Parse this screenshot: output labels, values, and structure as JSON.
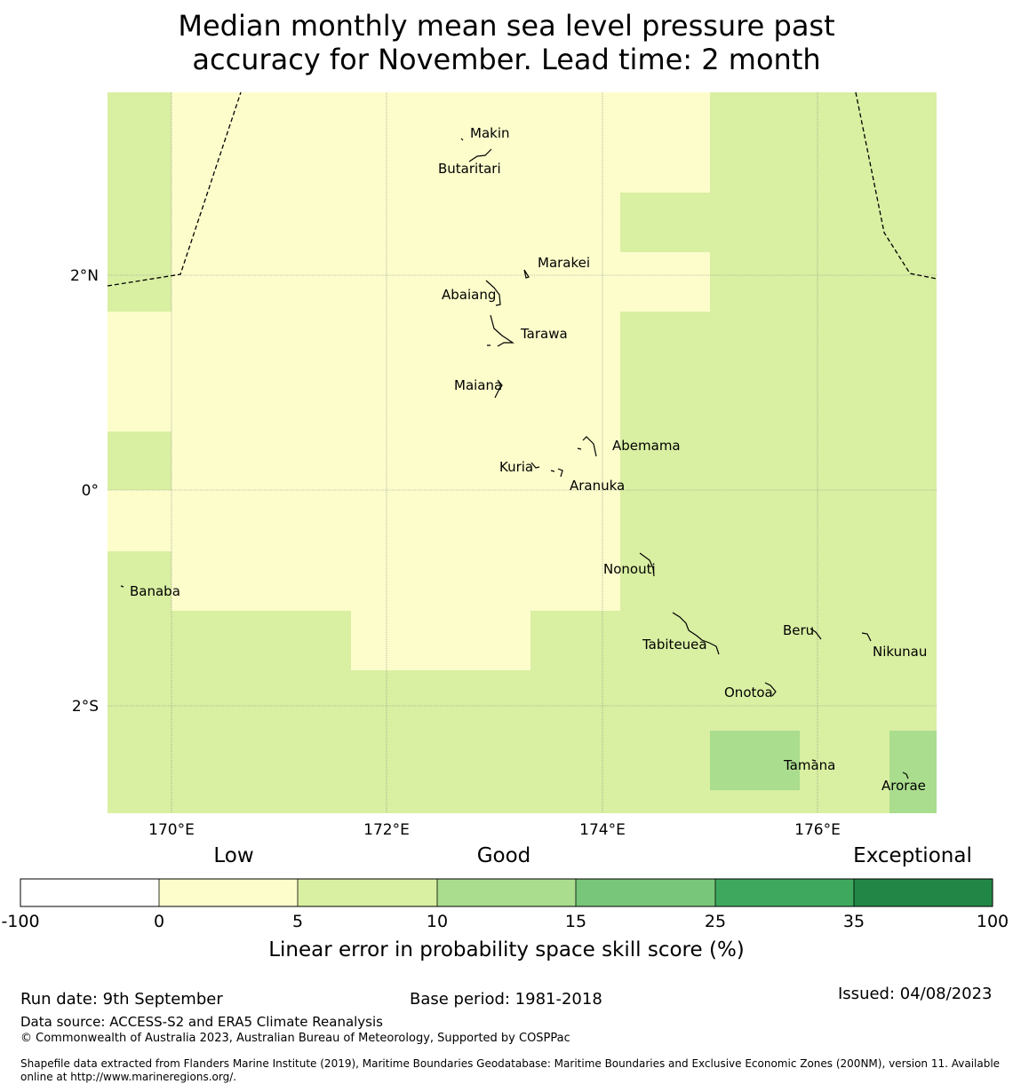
{
  "title": {
    "line1": "Median monthly mean sea level pressure past",
    "line2": "accuracy for November. Lead time: 2 month"
  },
  "map": {
    "lat_ticks": [
      {
        "lat": 2,
        "label": "2°N"
      },
      {
        "lat": 0,
        "label": "0°"
      },
      {
        "lat": -2,
        "label": "2°S"
      }
    ],
    "lon_ticks": [
      {
        "lon": 170,
        "label": "170°E"
      },
      {
        "lon": 172,
        "label": "172°E"
      },
      {
        "lon": 174,
        "label": "174°E"
      },
      {
        "lon": 176,
        "label": "176°E"
      }
    ],
    "extent": {
      "lon_min": 169.4,
      "lon_max": 177.1,
      "lat_min": -3.0,
      "lat_max": 3.7
    },
    "grid_cells_lon_edges": [
      169.4,
      170.0,
      171.67,
      173.33,
      174.17,
      175.0,
      175.83,
      176.67,
      177.1
    ],
    "islands": [
      {
        "name": "Makin",
        "lon": 172.98,
        "lat": 3.33
      },
      {
        "name": "Butaritari",
        "lon": 172.8,
        "lat": 3.1
      },
      {
        "name": "Marakei",
        "lon": 173.3,
        "lat": 2.0
      },
      {
        "name": "Abaiang",
        "lon": 172.97,
        "lat": 1.85
      },
      {
        "name": "Tarawa",
        "lon": 173.0,
        "lat": 1.4
      },
      {
        "name": "Maiana",
        "lon": 173.0,
        "lat": 0.95
      },
      {
        "name": "Abemama",
        "lon": 173.87,
        "lat": 0.45
      },
      {
        "name": "Kuria",
        "lon": 173.42,
        "lat": 0.22
      },
      {
        "name": "Aranuka",
        "lon": 173.62,
        "lat": 0.17
      },
      {
        "name": "Nonouti",
        "lon": 174.4,
        "lat": -0.65
      },
      {
        "name": "Banaba",
        "lon": 169.53,
        "lat": -0.87
      },
      {
        "name": "Beru",
        "lon": 176.0,
        "lat": -1.33
      },
      {
        "name": "Nikunau",
        "lon": 176.45,
        "lat": -1.35
      },
      {
        "name": "Tabiteuea",
        "lon": 174.85,
        "lat": -1.4
      },
      {
        "name": "Onotoa",
        "lon": 175.55,
        "lat": -1.8
      },
      {
        "name": "Tamana",
        "lon": 175.98,
        "lat": -2.5
      },
      {
        "name": "Arorae",
        "lon": 176.82,
        "lat": -2.63
      }
    ]
  },
  "legend": {
    "category_labels": [
      "Low",
      "Good",
      "Exceptional"
    ],
    "bins": [
      {
        "from": "-100",
        "to": "0",
        "color": "#ffffff"
      },
      {
        "from": "0",
        "to": "5",
        "color": "#fcfdcb"
      },
      {
        "from": "5",
        "to": "10",
        "color": "#d9efa2"
      },
      {
        "from": "10",
        "to": "15",
        "color": "#aadd8e"
      },
      {
        "from": "15",
        "to": "25",
        "color": "#78c679"
      },
      {
        "from": "25",
        "to": "35",
        "color": "#3ea95e"
      },
      {
        "from": "35",
        "to": "100",
        "color": "#228746"
      }
    ],
    "tick_labels": [
      "-100",
      "0",
      "5",
      "10",
      "15",
      "25",
      "35",
      "100"
    ],
    "axis_label": "Linear error in probability space skill score (%)"
  },
  "footer": {
    "run_date": "Run date: 9th September",
    "base_period": "Base period: 1981-2018",
    "issued": "Issued: 04/08/2023",
    "data_source": "Data source: ACCESS-S2 and ERA5 Climate Reanalysis",
    "copyright": "© Commonwealth of Australia 2023, Australian Bureau of Meteorology, Supported by COSPPac",
    "shapefile_line1": "Shapefile data extracted from Flanders Marine Institute (2019), Maritime Boundaries Geodatabase: Maritime Boundaries and Exclusive Economic Zones (200NM), version 11. Available",
    "shapefile_line2": "online at http://www.marineregions.org/."
  },
  "colors": {
    "low": "#fcfdcb",
    "good": "#d9efa2",
    "good_plus": "#aadd8e"
  }
}
